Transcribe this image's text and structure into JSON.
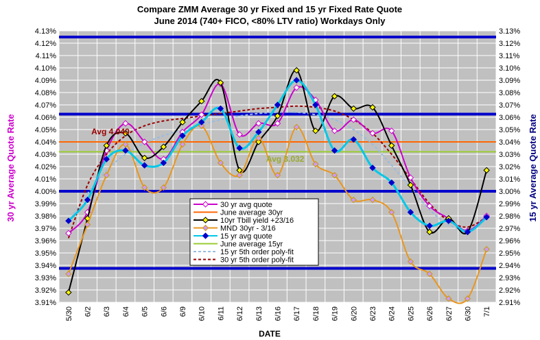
{
  "chart_data": {
    "type": "line",
    "title": "Compare ZMM Average 30 yr Fixed and 15 yr Fixed Rate Quote",
    "subtitle": "June 2014  (740+ FICO, <80% LTV ratio) Workdays Only",
    "xlabel": "DATE",
    "ylabel_left": "30 yr Average Quote Rate",
    "ylabel_right": "15 yr Average Quote Rate",
    "categories": [
      "5/30",
      "6/2",
      "6/3",
      "6/4",
      "6/5",
      "6/6",
      "6/9",
      "6/10",
      "6/11",
      "6/12",
      "6/13",
      "6/16",
      "6/17",
      "6/18",
      "6/19",
      "6/20",
      "6/23",
      "6/24",
      "6/25",
      "6/26",
      "6/27",
      "6/30",
      "7/1"
    ],
    "ylim_left": [
      3.91,
      4.13
    ],
    "ylim_right": [
      2.91,
      3.13
    ],
    "yticks_left": [
      "3.91%",
      "3.92%",
      "3.93%",
      "3.94%",
      "3.95%",
      "3.96%",
      "3.97%",
      "3.98%",
      "3.99%",
      "4.00%",
      "4.01%",
      "4.02%",
      "4.03%",
      "4.04%",
      "4.05%",
      "4.06%",
      "4.07%",
      "4.08%",
      "4.09%",
      "4.10%",
      "4.11%",
      "4.12%",
      "4.13%"
    ],
    "yticks_right": [
      "2.91%",
      "2.92%",
      "2.93%",
      "2.94%",
      "2.95%",
      "2.96%",
      "2.97%",
      "2.98%",
      "2.99%",
      "3.00%",
      "3.01%",
      "3.02%",
      "3.03%",
      "3.04%",
      "3.05%",
      "3.06%",
      "3.07%",
      "3.08%",
      "3.09%",
      "3.10%",
      "3.11%",
      "3.12%",
      "3.13%"
    ],
    "grid": true,
    "legend_position": "lower-center",
    "series": [
      {
        "name": "30 yr avg quote",
        "axis": "left",
        "color": "#cc00cc",
        "style": "line",
        "marker": "diamond",
        "values": [
          3.966,
          3.983,
          4.033,
          4.055,
          4.04,
          4.026,
          4.048,
          4.062,
          4.087,
          4.046,
          4.055,
          4.055,
          4.084,
          4.074,
          4.049,
          4.058,
          4.047,
          4.049,
          4.011,
          3.988,
          3.978,
          3.968,
          3.98
        ]
      },
      {
        "name": "June average 30yr",
        "axis": "left",
        "color": "#ff6600",
        "style": "hline",
        "value": 4.04
      },
      {
        "name": "10yr Tbill yield +23/16",
        "axis": "left",
        "color": "#000000",
        "style": "line",
        "marker": "diamond-yellow",
        "values": [
          3.918,
          3.978,
          4.037,
          4.047,
          4.027,
          4.036,
          4.056,
          4.073,
          4.088,
          4.017,
          4.04,
          4.061,
          4.098,
          4.049,
          4.077,
          4.067,
          4.068,
          4.037,
          4.005,
          3.967,
          3.978,
          3.967,
          4.017
        ]
      },
      {
        "name": "MND 30yr -  3/16",
        "axis": "left",
        "color": "#e8961e",
        "style": "line",
        "marker": "diamond-lavender",
        "values": [
          3.933,
          3.973,
          4.013,
          4.038,
          4.003,
          4.003,
          4.038,
          4.053,
          4.023,
          4.013,
          4.043,
          4.013,
          4.052,
          4.022,
          4.013,
          3.993,
          3.993,
          3.983,
          3.943,
          3.933,
          3.913,
          3.913,
          3.953
        ]
      },
      {
        "name": "15 yr avg quote",
        "axis": "right",
        "color": "#00c8e8",
        "style": "line",
        "marker": "diamond-blue",
        "values": [
          2.976,
          2.993,
          3.026,
          3.033,
          3.021,
          3.023,
          3.045,
          3.056,
          3.067,
          3.035,
          3.048,
          3.07,
          3.09,
          3.07,
          3.033,
          3.042,
          3.019,
          3.007,
          2.983,
          2.972,
          2.976,
          2.967,
          2.979
        ]
      },
      {
        "name": "June average 15yr",
        "axis": "right",
        "color": "#99cc33",
        "style": "hline",
        "value": 3.032
      },
      {
        "name": "15 yr 5th order poly-fit",
        "axis": "right",
        "color": "#99bbe0",
        "style": "dashed",
        "values": [
          2.975,
          2.998,
          3.017,
          3.03,
          3.039,
          3.045,
          3.05,
          3.054,
          3.058,
          3.061,
          3.063,
          3.064,
          3.064,
          3.062,
          3.058,
          3.05,
          3.038,
          3.021,
          3.003,
          2.985,
          2.973,
          2.969,
          2.977
        ]
      },
      {
        "name": "30 yr 5th order poly-fit",
        "axis": "left",
        "color": "#990000",
        "style": "dashed",
        "values": [
          3.962,
          4.005,
          4.03,
          4.045,
          4.053,
          4.057,
          4.059,
          4.061,
          4.063,
          4.065,
          4.067,
          4.068,
          4.069,
          4.068,
          4.065,
          4.058,
          4.047,
          4.03,
          4.01,
          3.99,
          3.976,
          3.971,
          3.979
        ]
      }
    ],
    "reference_lines_left": [
      4.0625,
      4.0,
      3.9375
    ],
    "reference_lines_left_extra": [
      4.125
    ],
    "annotations": [
      {
        "text": "Avg 4.040",
        "color": "#990000",
        "x_index": 1.2,
        "y": 4.046
      },
      {
        "text": "Avg  3.032",
        "color": "#99aa33",
        "x_index": 10.4,
        "y": 4.024
      }
    ]
  }
}
